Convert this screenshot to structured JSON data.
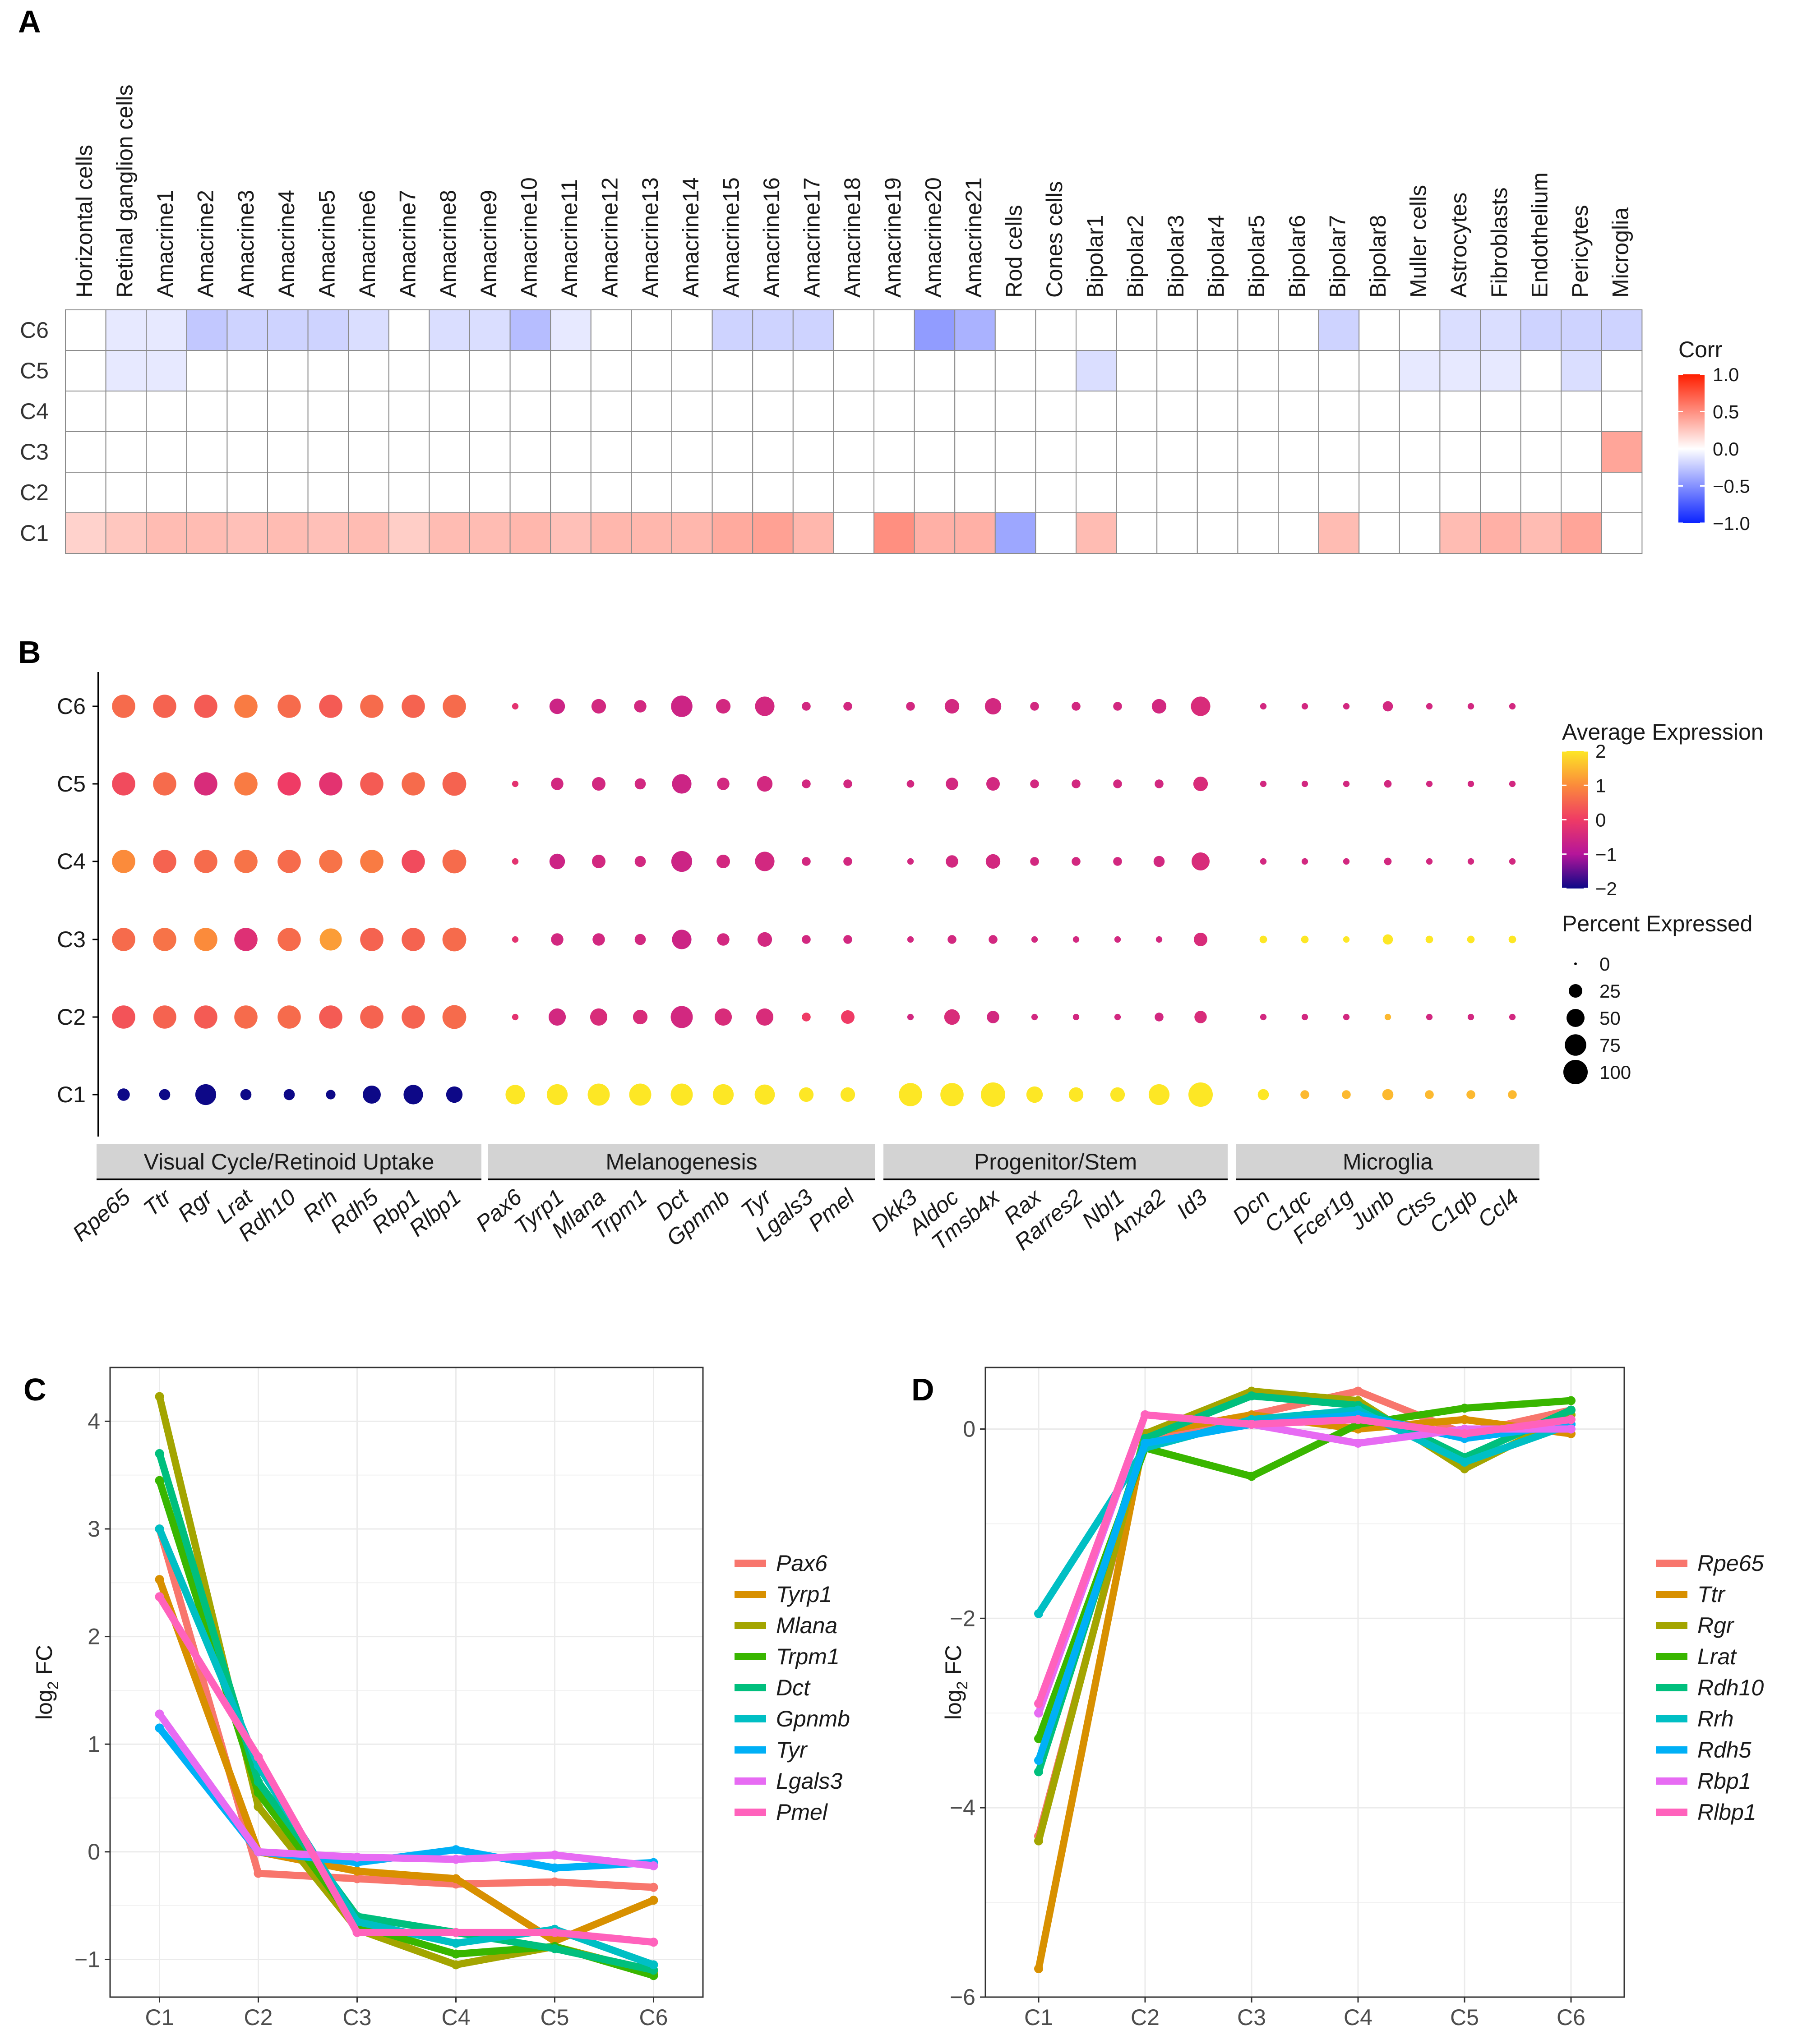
{
  "panels": {
    "a": {
      "letter": "A"
    },
    "b": {
      "letter": "B"
    },
    "c": {
      "letter": "C"
    },
    "d": {
      "letter": "D"
    }
  },
  "chart_data": [
    {
      "id": "A",
      "type": "heatmap",
      "rows": [
        "C6",
        "C5",
        "C4",
        "C3",
        "C2",
        "C1"
      ],
      "columns": [
        "Horizontal cells",
        "Retinal ganglion cells",
        "Amacrine1",
        "Amacrine2",
        "Amacrine3",
        "Amacrine4",
        "Amacrine5",
        "Amacrine6",
        "Amacrine7",
        "Amacrine8",
        "Amacrine9",
        "Amacrine10",
        "Amacrine11",
        "Amacrine12",
        "Amacrine13",
        "Amacrine14",
        "Amacrine15",
        "Amacrine16",
        "Amacrine17",
        "Amacrine18",
        "Amacrine19",
        "Amacrine20",
        "Amacrine21",
        "Rod cells",
        "Cones cells",
        "Bipolar1",
        "Bipolar2",
        "Bipolar3",
        "Bipolar4",
        "Bipolar5",
        "Bipolar6",
        "Bipolar7",
        "Bipolar8",
        "Muller cells",
        "Astrocytes",
        "Fibroblasts",
        "Endothelium",
        "Pericytes",
        "Microglia"
      ],
      "values": [
        [
          0,
          -0.1,
          -0.1,
          -0.25,
          -0.2,
          -0.2,
          -0.2,
          -0.15,
          0,
          -0.15,
          -0.15,
          -0.3,
          -0.1,
          0,
          0,
          0,
          -0.2,
          -0.2,
          -0.2,
          0,
          0,
          -0.45,
          -0.35,
          0,
          0,
          0,
          0,
          0,
          0,
          0,
          0,
          -0.2,
          0,
          0,
          -0.15,
          -0.15,
          -0.2,
          -0.2,
          -0.2
        ],
        [
          0,
          -0.1,
          -0.1,
          0,
          0,
          0,
          0,
          0,
          0,
          0,
          0,
          0,
          0,
          0,
          0,
          0,
          0,
          0,
          0,
          0,
          0,
          0,
          0,
          0,
          0,
          -0.15,
          0,
          0,
          0,
          0,
          0,
          0,
          0,
          -0.1,
          -0.1,
          -0.1,
          0,
          -0.15,
          0
        ],
        [
          0,
          0,
          0,
          0,
          0,
          0,
          0,
          0,
          0,
          0,
          0,
          0,
          0,
          0,
          0,
          0,
          0,
          0,
          0,
          0,
          0,
          0,
          0,
          0,
          0,
          0,
          0,
          0,
          0,
          0,
          0,
          0,
          0,
          0,
          0,
          0,
          0,
          0,
          0
        ],
        [
          0,
          0,
          0,
          0,
          0,
          0,
          0,
          0,
          0,
          0,
          0,
          0,
          0,
          0,
          0,
          0,
          0,
          0,
          0,
          0,
          0,
          0,
          0,
          0,
          0,
          0,
          0,
          0,
          0,
          0,
          0,
          0,
          0,
          0,
          0,
          0,
          0,
          0,
          0.4
        ],
        [
          0,
          0,
          0,
          0,
          0,
          0,
          0,
          0,
          0,
          0,
          0,
          0,
          0,
          0,
          0,
          0,
          0,
          0,
          0,
          0,
          0,
          0,
          0,
          0,
          0,
          0,
          0,
          0,
          0,
          0,
          0,
          0,
          0,
          0,
          0,
          0,
          0,
          0,
          0
        ],
        [
          0.2,
          0.25,
          0.3,
          0.3,
          0.28,
          0.3,
          0.28,
          0.3,
          0.22,
          0.3,
          0.3,
          0.32,
          0.28,
          0.32,
          0.32,
          0.32,
          0.38,
          0.42,
          0.32,
          0,
          0.5,
          0.35,
          0.35,
          -0.4,
          0,
          0.3,
          0,
          0,
          0,
          0,
          0,
          0.3,
          0,
          0,
          0.3,
          0.35,
          0.3,
          0.4,
          0
        ]
      ],
      "legend": {
        "title": "Corr",
        "ticks": [
          "1.0",
          "0.5",
          "0.0",
          "−0.5",
          "−1.0"
        ],
        "tick_values": [
          1,
          0.5,
          0,
          -0.5,
          -1
        ],
        "colors": [
          "#0b23ff",
          "#ffffff",
          "#ff1e00"
        ]
      }
    },
    {
      "id": "B",
      "type": "dot",
      "rows": [
        "C6",
        "C5",
        "C4",
        "C3",
        "C2",
        "C1"
      ],
      "genes": [
        "Rpe65",
        "Ttr",
        "Rgr",
        "Lrat",
        "Rdh10",
        "Rrh",
        "Rdh5",
        "Rbp1",
        "Rlbp1",
        "Pax6",
        "Tyrp1",
        "Mlana",
        "Trpm1",
        "Dct",
        "Gpnmb",
        "Tyr",
        "Lgals3",
        "Pmel",
        "Dkk3",
        "Aldoc",
        "Tmsb4x",
        "Rax",
        "Rarres2",
        "Nbl1",
        "Anxa2",
        "Id3",
        "Dcn",
        "C1qc",
        "Fcer1g",
        "Junb",
        "Ctss",
        "C1qb",
        "Ccl4"
      ],
      "groups": [
        {
          "label": "Visual Cycle/Retinoid Uptake",
          "start": 0,
          "end": 8
        },
        {
          "label": "Melanogenesis",
          "start": 9,
          "end": 17
        },
        {
          "label": "Progenitor/Stem",
          "start": 18,
          "end": 25
        },
        {
          "label": "Microglia",
          "start": 26,
          "end": 32
        }
      ],
      "expression": [
        [
          0.6,
          0.5,
          0.4,
          0.8,
          0.6,
          0.4,
          0.6,
          0.5,
          0.6,
          -0.2,
          -0.6,
          -0.5,
          -0.5,
          -0.6,
          -0.5,
          -0.5,
          -0.5,
          -0.5,
          -0.5,
          -0.5,
          -0.5,
          -0.5,
          -0.5,
          -0.5,
          -0.5,
          -0.4,
          -0.5,
          -0.5,
          -0.5,
          -0.5,
          -0.5,
          -0.5,
          -0.5
        ],
        [
          0.2,
          0.6,
          -0.4,
          0.8,
          0.0,
          -0.2,
          0.4,
          0.6,
          0.5,
          -0.2,
          -0.5,
          -0.5,
          -0.5,
          -0.6,
          -0.5,
          -0.5,
          -0.5,
          -0.5,
          -0.5,
          -0.5,
          -0.5,
          -0.5,
          -0.5,
          -0.5,
          -0.5,
          -0.4,
          -0.5,
          -0.5,
          -0.5,
          -0.5,
          -0.5,
          -0.5,
          -0.5
        ],
        [
          1.0,
          0.5,
          0.6,
          0.7,
          0.6,
          0.7,
          0.8,
          0.2,
          0.6,
          -0.2,
          -0.6,
          -0.5,
          -0.5,
          -0.6,
          -0.5,
          -0.5,
          -0.5,
          -0.5,
          -0.5,
          -0.5,
          -0.5,
          -0.5,
          -0.5,
          -0.5,
          -0.5,
          -0.4,
          -0.5,
          -0.5,
          -0.5,
          -0.5,
          -0.5,
          -0.5,
          -0.5
        ],
        [
          0.6,
          0.7,
          1.0,
          -0.3,
          0.6,
          1.2,
          0.5,
          0.5,
          0.6,
          -0.2,
          -0.5,
          -0.5,
          -0.5,
          -0.6,
          -0.5,
          -0.5,
          -0.5,
          -0.5,
          -0.5,
          -0.5,
          -0.5,
          -0.5,
          -0.5,
          -0.5,
          -0.5,
          -0.4,
          2.0,
          2.0,
          2.0,
          2.0,
          2.0,
          2.0,
          2.0
        ],
        [
          0.3,
          0.5,
          0.4,
          0.6,
          0.6,
          0.4,
          0.5,
          0.5,
          0.6,
          -0.2,
          -0.5,
          -0.4,
          -0.4,
          -0.5,
          -0.4,
          -0.4,
          0.0,
          0.0,
          -0.5,
          -0.4,
          -0.5,
          -0.5,
          -0.5,
          -0.5,
          -0.5,
          -0.4,
          -0.5,
          -0.5,
          -0.5,
          1.5,
          -0.5,
          -0.5,
          -0.5
        ],
        [
          -2,
          -2,
          -2,
          -2,
          -2,
          -2,
          -2,
          -2,
          -2,
          2,
          2,
          2,
          2,
          2,
          2,
          2,
          2,
          2,
          2,
          2,
          2,
          2,
          2,
          2,
          2,
          2,
          2,
          1.5,
          1.5,
          1.5,
          1.5,
          1.5,
          1.5
        ]
      ],
      "percent": [
        [
          90,
          90,
          90,
          90,
          90,
          90,
          90,
          90,
          90,
          3,
          35,
          30,
          20,
          75,
          30,
          60,
          8,
          8,
          8,
          30,
          40,
          8,
          8,
          8,
          30,
          60,
          3,
          3,
          3,
          12,
          3,
          3,
          3
        ],
        [
          90,
          90,
          90,
          90,
          90,
          90,
          90,
          90,
          95,
          3,
          20,
          25,
          15,
          60,
          20,
          35,
          8,
          8,
          5,
          20,
          25,
          8,
          8,
          8,
          8,
          30,
          3,
          3,
          3,
          5,
          3,
          3,
          3
        ],
        [
          90,
          90,
          90,
          90,
          90,
          90,
          90,
          90,
          95,
          3,
          35,
          25,
          15,
          70,
          25,
          60,
          8,
          8,
          3,
          20,
          30,
          8,
          8,
          8,
          15,
          50,
          3,
          3,
          3,
          5,
          3,
          3,
          3
        ],
        [
          90,
          90,
          90,
          90,
          90,
          80,
          90,
          90,
          95,
          3,
          20,
          20,
          15,
          60,
          20,
          30,
          8,
          8,
          3,
          8,
          8,
          3,
          3,
          3,
          3,
          25,
          5,
          5,
          3,
          12,
          5,
          5,
          5
        ],
        [
          90,
          90,
          90,
          90,
          90,
          90,
          90,
          90,
          95,
          3,
          45,
          45,
          30,
          80,
          45,
          45,
          8,
          25,
          3,
          35,
          20,
          3,
          3,
          3,
          8,
          20,
          3,
          3,
          3,
          3,
          3,
          3,
          3
        ],
        [
          20,
          15,
          70,
          15,
          15,
          10,
          50,
          60,
          40,
          60,
          70,
          80,
          80,
          80,
          70,
          65,
          30,
          30,
          90,
          90,
          100,
          40,
          30,
          30,
          70,
          100,
          15,
          8,
          8,
          15,
          8,
          8,
          8
        ]
      ],
      "legend": {
        "color_title": "Average Expression",
        "color_ticks": [
          "2",
          "1",
          "0",
          "−1",
          "−2"
        ],
        "color_tick_values": [
          2,
          1,
          0,
          -1,
          -2
        ],
        "size_title": "Percent Expressed",
        "size_labels": [
          "0",
          "25",
          "50",
          "75",
          "100"
        ],
        "size_values": [
          0,
          25,
          50,
          75,
          100
        ]
      }
    },
    {
      "id": "C",
      "type": "line",
      "x": [
        "C1",
        "C2",
        "C3",
        "C4",
        "C5",
        "C6"
      ],
      "ylabel_main": "log",
      "ylabel_sub": "2",
      "ylabel_tail": " FC",
      "ylim": [
        -1.35,
        4.5
      ],
      "yticks": [
        4,
        3,
        2,
        1,
        0,
        -1
      ],
      "ytick_labels": [
        "4",
        "3",
        "2",
        "1",
        "0",
        "−1"
      ],
      "series": [
        {
          "name": "Pax6",
          "color": "#F8766D",
          "values": [
            3.0,
            -0.2,
            -0.25,
            -0.3,
            -0.28,
            -0.33
          ]
        },
        {
          "name": "Tyrp1",
          "color": "#D89000",
          "values": [
            2.53,
            0.0,
            -0.18,
            -0.25,
            -0.83,
            -0.45
          ]
        },
        {
          "name": "Mlana",
          "color": "#A3A500",
          "values": [
            4.23,
            0.42,
            -0.72,
            -1.05,
            -0.88,
            -1.12
          ]
        },
        {
          "name": "Trpm1",
          "color": "#39B600",
          "values": [
            3.45,
            0.55,
            -0.68,
            -0.95,
            -0.88,
            -1.15
          ]
        },
        {
          "name": "Dct",
          "color": "#00BF7D",
          "values": [
            3.7,
            0.65,
            -0.6,
            -0.75,
            -0.9,
            -1.1
          ]
        },
        {
          "name": "Gpnmb",
          "color": "#00BFC4",
          "values": [
            3.0,
            0.8,
            -0.65,
            -0.85,
            -0.72,
            -1.05
          ]
        },
        {
          "name": "Tyr",
          "color": "#00B0F6",
          "values": [
            1.15,
            0.0,
            -0.1,
            0.02,
            -0.15,
            -0.1
          ]
        },
        {
          "name": "Lgals3",
          "color": "#E76BF3",
          "values": [
            1.28,
            0.0,
            -0.05,
            -0.07,
            -0.03,
            -0.13
          ]
        },
        {
          "name": "Pmel",
          "color": "#FF62BC",
          "values": [
            2.37,
            0.88,
            -0.75,
            -0.75,
            -0.75,
            -0.84
          ]
        }
      ]
    },
    {
      "id": "D",
      "type": "line",
      "x": [
        "C1",
        "C2",
        "C3",
        "C4",
        "C5",
        "C6"
      ],
      "ylabel_main": "log",
      "ylabel_sub": "2",
      "ylabel_tail": " FC",
      "ylim": [
        -6.0,
        0.65
      ],
      "yticks": [
        0,
        -2,
        -4,
        -6
      ],
      "ytick_labels": [
        "0",
        "−2",
        "−4",
        "−6"
      ],
      "series": [
        {
          "name": "Rpe65",
          "color": "#F8766D",
          "values": [
            -4.3,
            -0.1,
            0.15,
            0.4,
            -0.05,
            0.2
          ]
        },
        {
          "name": "Ttr",
          "color": "#D89000",
          "values": [
            -5.7,
            -0.05,
            0.15,
            0.0,
            0.1,
            -0.05
          ]
        },
        {
          "name": "Rgr",
          "color": "#A3A500",
          "values": [
            -4.35,
            -0.05,
            0.4,
            0.3,
            -0.42,
            0.15
          ]
        },
        {
          "name": "Lrat",
          "color": "#39B600",
          "values": [
            -3.27,
            -0.2,
            -0.5,
            0.05,
            0.22,
            0.3
          ]
        },
        {
          "name": "Rdh10",
          "color": "#00BF7D",
          "values": [
            -3.62,
            -0.1,
            0.35,
            0.25,
            -0.3,
            0.2
          ]
        },
        {
          "name": "Rrh",
          "color": "#00BFC4",
          "values": [
            -1.95,
            -0.2,
            0.1,
            0.2,
            -0.35,
            0.05
          ]
        },
        {
          "name": "Rdh5",
          "color": "#00B0F6",
          "values": [
            -3.5,
            -0.15,
            0.05,
            0.15,
            -0.1,
            0.05
          ]
        },
        {
          "name": "Rbp1",
          "color": "#E76BF3",
          "values": [
            -3.0,
            0.15,
            0.05,
            -0.15,
            0.0,
            0.0
          ]
        },
        {
          "name": "Rlbp1",
          "color": "#FF62BC",
          "values": [
            -2.9,
            0.15,
            0.05,
            0.1,
            -0.05,
            0.1
          ]
        }
      ]
    }
  ]
}
